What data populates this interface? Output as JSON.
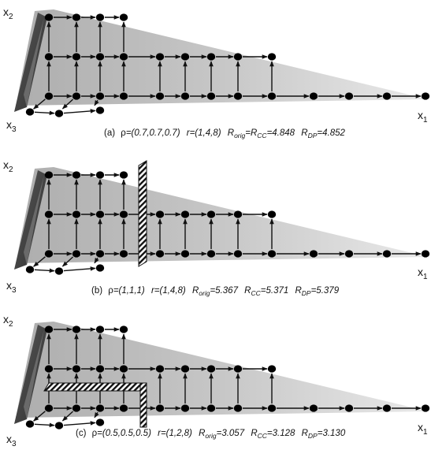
{
  "panels": [
    {
      "id": "a",
      "caption": {
        "label": "(a)",
        "rho_symbol": "ρ",
        "rho_value": "=(0.7,0.7,0.7)",
        "r_text": "r=(1,4,8)",
        "r_orig_prefix": "R",
        "r_orig_sub": "orig",
        "r_mid": "=R",
        "r_cc_sub": "CC",
        "r_cc_value": "=4.848",
        "r_dp_prefix": "R",
        "r_dp_sub": "DP",
        "r_dp_value": "=4.852"
      },
      "axis_labels": {
        "x1": "x",
        "x1_sub": "1",
        "x2": "x",
        "x2_sub": "2",
        "x3": "x",
        "x3_sub": "3"
      },
      "barrier": "none"
    },
    {
      "id": "b",
      "caption": {
        "label": "(b)",
        "rho_symbol": "ρ",
        "rho_value": "=(1,1,1)",
        "r_text": "r=(1,4,8)",
        "r_orig_prefix": "R",
        "r_orig_sub": "orig",
        "r_orig_value": "=5.367",
        "r_cc_prefix": "R",
        "r_cc_sub": "CC",
        "r_cc_value": "=5.371",
        "r_dp_prefix": "R",
        "r_dp_sub": "DP",
        "r_dp_value": "=5.379"
      },
      "axis_labels": {
        "x1": "x",
        "x1_sub": "1",
        "x2": "x",
        "x2_sub": "2",
        "x3": "x",
        "x3_sub": "3"
      },
      "barrier": "vertical"
    },
    {
      "id": "c",
      "caption": {
        "label": "(c)",
        "rho_symbol": "ρ",
        "rho_value": "=(0.5,0.5,0.5)",
        "r_text": "r=(1,2,8)",
        "r_orig_prefix": "R",
        "r_orig_sub": "orig",
        "r_orig_value": "=3.057",
        "r_cc_prefix": "R",
        "r_cc_sub": "CC",
        "r_cc_value": "=3.128",
        "r_dp_prefix": "R",
        "r_dp_sub": "DP",
        "r_dp_value": "=3.130"
      },
      "axis_labels": {
        "x1": "x",
        "x1_sub": "1",
        "x2": "x",
        "x2_sub": "2",
        "x3": "x",
        "x3_sub": "3"
      },
      "barrier": "L-shaped"
    }
  ],
  "colors": {
    "shade": "#bdbdbd",
    "dark_face": "#4a4a4a",
    "node": "#000000",
    "line": "#111111"
  }
}
